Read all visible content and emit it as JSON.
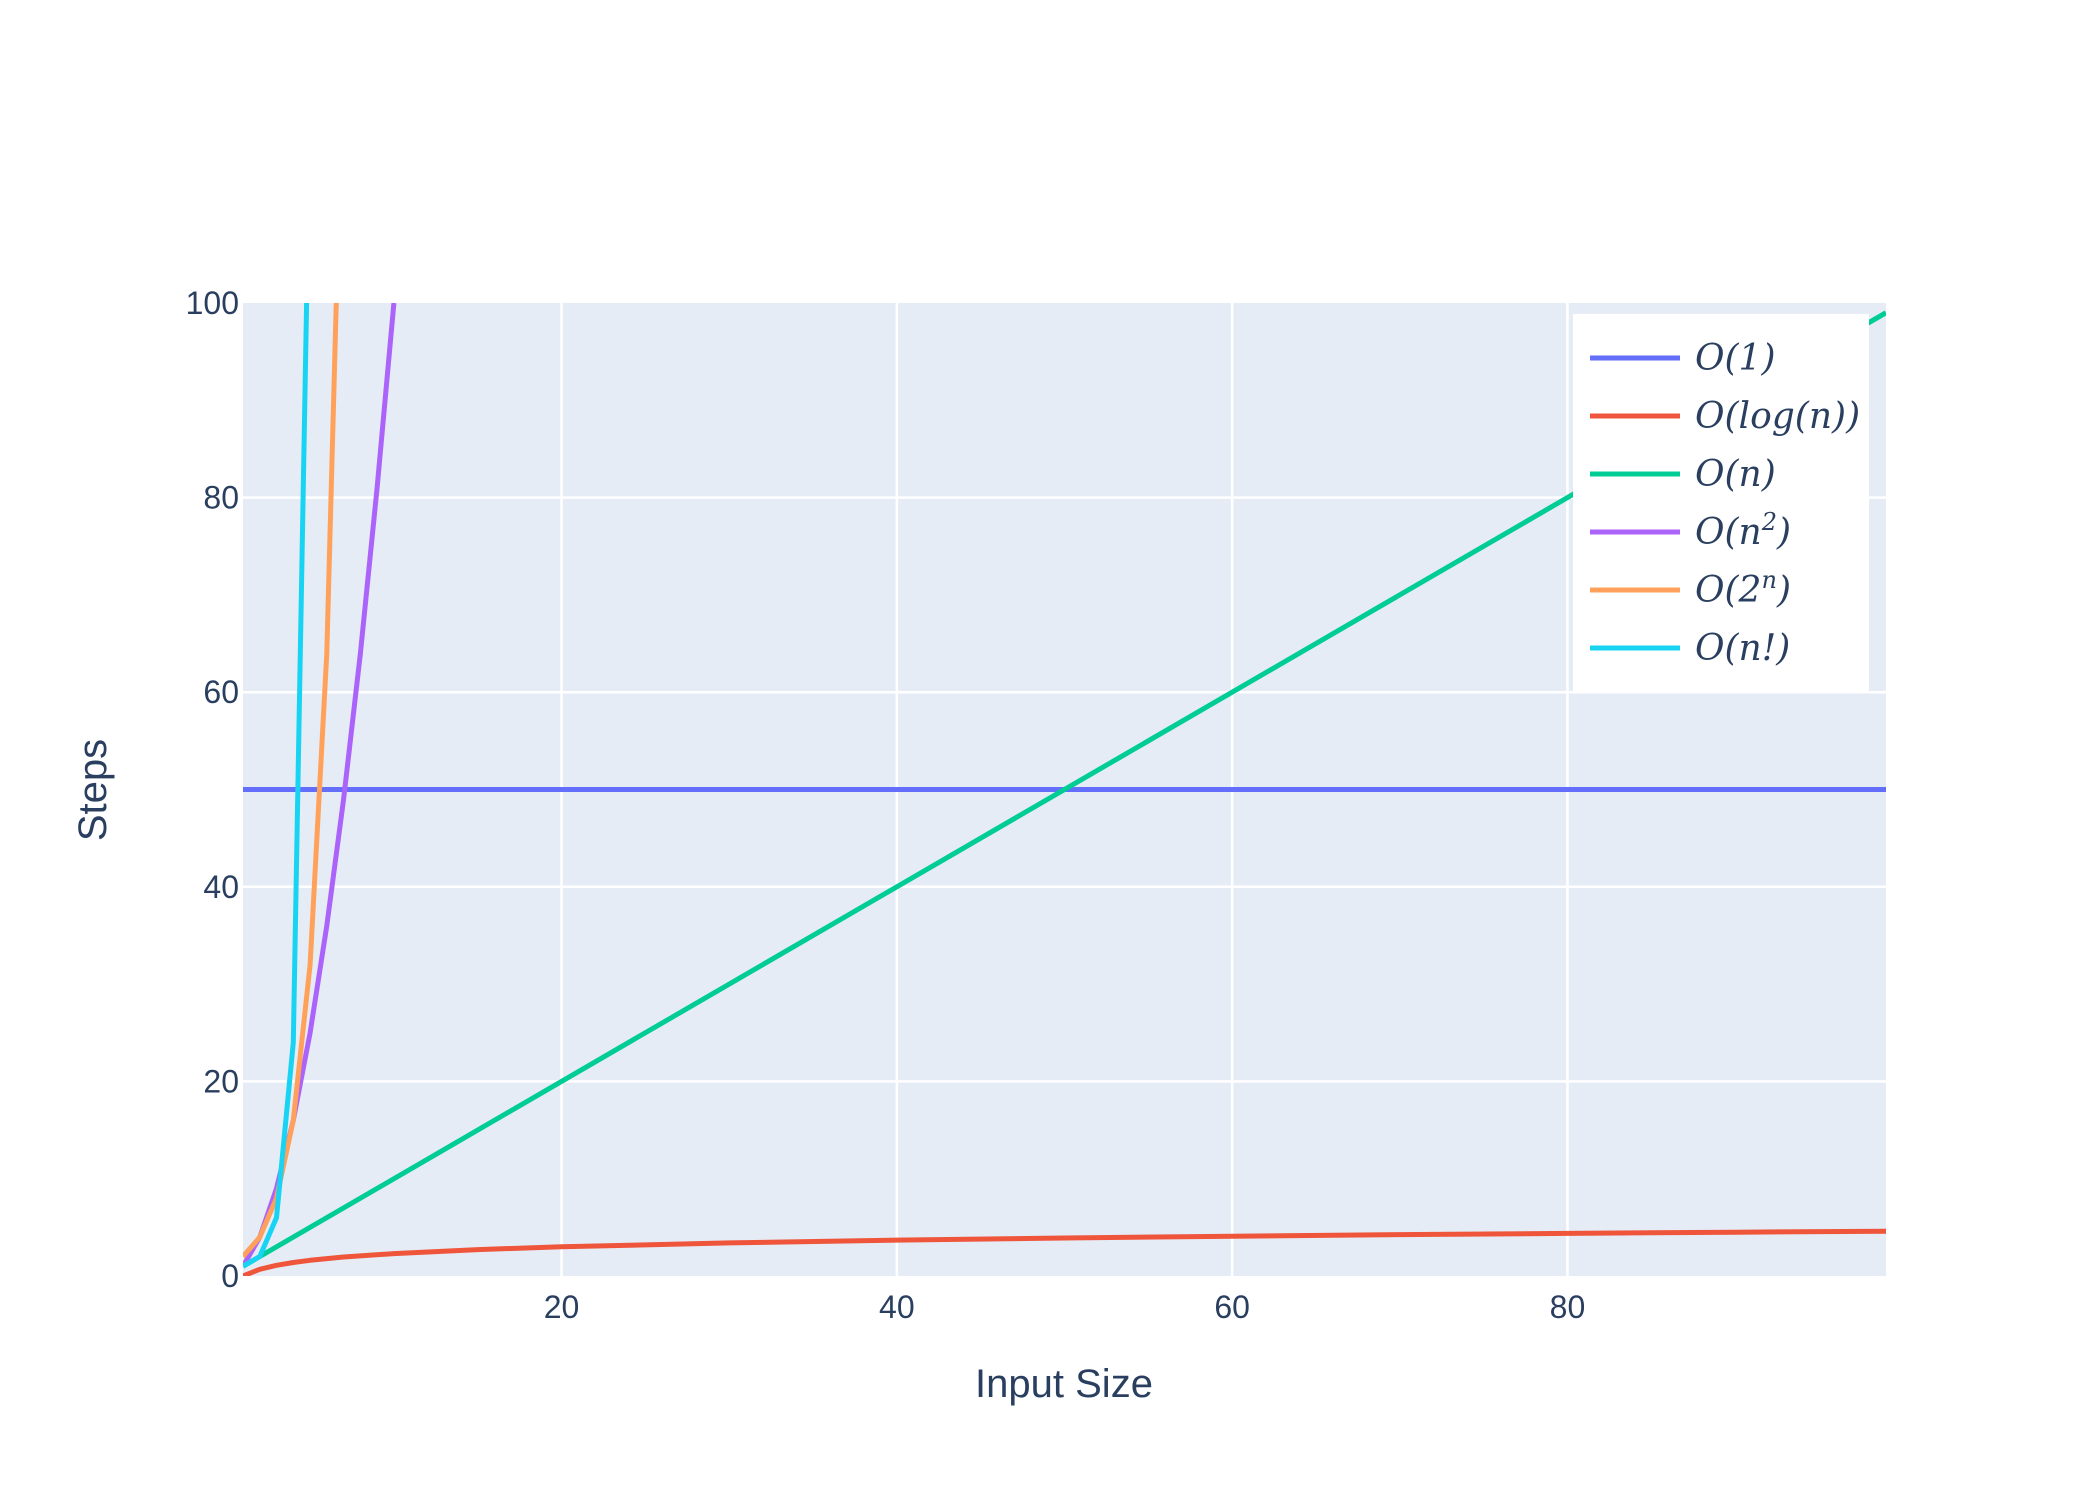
{
  "chart_data": {
    "type": "line",
    "title": "",
    "xlabel": "Input Size",
    "ylabel": "Steps",
    "xlim": [
      1,
      99
    ],
    "ylim": [
      0,
      100
    ],
    "x_ticks": [
      20,
      40,
      60,
      80
    ],
    "y_ticks": [
      0,
      20,
      40,
      60,
      80,
      100
    ],
    "grid": true,
    "legend_position": "top-right",
    "background_color": "#e5ecf6",
    "series": [
      {
        "name": "O(1)",
        "color": "#636efa",
        "x": [
          1,
          99
        ],
        "y": [
          50,
          50
        ]
      },
      {
        "name": "O(log(n))",
        "color": "#ef553b",
        "x": [
          1,
          2,
          3,
          4,
          5,
          7,
          10,
          15,
          20,
          30,
          40,
          50,
          60,
          70,
          80,
          90,
          99
        ],
        "y": [
          0,
          0.69,
          1.1,
          1.39,
          1.61,
          1.95,
          2.3,
          2.71,
          3.0,
          3.4,
          3.69,
          3.91,
          4.09,
          4.25,
          4.38,
          4.5,
          4.6
        ]
      },
      {
        "name": "O(n)",
        "color": "#00cc96",
        "x": [
          1,
          99
        ],
        "y": [
          1,
          99
        ]
      },
      {
        "name": "O(n^2)",
        "color": "#ab63fa",
        "x": [
          1,
          2,
          3,
          4,
          5,
          6,
          7,
          8,
          9,
          10
        ],
        "y": [
          1,
          4,
          9,
          16,
          25,
          36,
          49,
          64,
          81,
          100
        ]
      },
      {
        "name": "O(2^n)",
        "color": "#ffa15a",
        "x": [
          1,
          2,
          3,
          4,
          5,
          6,
          7
        ],
        "y": [
          2,
          4,
          8,
          16,
          32,
          64,
          128
        ]
      },
      {
        "name": "O(n!)",
        "color": "#19d3f3",
        "x": [
          1,
          2,
          3,
          4,
          5
        ],
        "y": [
          1,
          2,
          6,
          24,
          120
        ]
      }
    ],
    "legend": [
      {
        "key": "O(1)",
        "base": "O(1)",
        "sup": "",
        "tail": ""
      },
      {
        "key": "O(log(n))",
        "base": "O(log(n))",
        "sup": "",
        "tail": ""
      },
      {
        "key": "O(n)",
        "base": "O(n)",
        "sup": "",
        "tail": ""
      },
      {
        "key": "O(n^2)",
        "base": "O(n",
        "sup": "2",
        "tail": ")"
      },
      {
        "key": "O(2^n)",
        "base": "O(2",
        "sup": "n",
        "tail": ")"
      },
      {
        "key": "O(n!)",
        "base": "O(n!)",
        "sup": "",
        "tail": ""
      }
    ]
  }
}
